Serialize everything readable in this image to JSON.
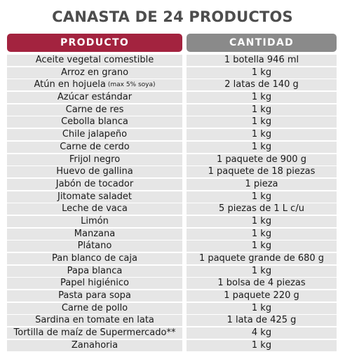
{
  "title": "CANASTA DE 24 PRODUCTOS",
  "colors": {
    "producto_header": "#a3233f",
    "cantidad_header": "#8a8a8a",
    "row_bg": "#e6e6e6",
    "title": "#4d4d4d"
  },
  "headers": {
    "producto": "PRODUCTO",
    "cantidad": "CANTIDAD"
  },
  "rows": [
    {
      "producto": "Aceite vegetal comestible",
      "note": "",
      "cantidad": "1 botella 946 ml"
    },
    {
      "producto": "Arroz en grano",
      "note": "",
      "cantidad": "1 kg"
    },
    {
      "producto": "Atún en hojuela",
      "note": "(max 5% soya)",
      "cantidad": "2 latas de 140 g"
    },
    {
      "producto": "Azúcar estándar",
      "note": "",
      "cantidad": "1 kg"
    },
    {
      "producto": "Carne de res",
      "note": "",
      "cantidad": "1 kg"
    },
    {
      "producto": "Cebolla blanca",
      "note": "",
      "cantidad": "1 kg"
    },
    {
      "producto": "Chile jalapeño",
      "note": "",
      "cantidad": "1 kg"
    },
    {
      "producto": "Carne de cerdo",
      "note": "",
      "cantidad": "1 kg"
    },
    {
      "producto": "Frijol negro",
      "note": "",
      "cantidad": "1 paquete de 900 g"
    },
    {
      "producto": "Huevo de gallina",
      "note": "",
      "cantidad": "1 paquete de 18 piezas"
    },
    {
      "producto": "Jabón de tocador",
      "note": "",
      "cantidad": "1 pieza"
    },
    {
      "producto": "Jitomate saladet",
      "note": "",
      "cantidad": "1 kg"
    },
    {
      "producto": "Leche de vaca",
      "note": "",
      "cantidad": "5 piezas de 1 L c/u"
    },
    {
      "producto": "Limón",
      "note": "",
      "cantidad": "1 kg"
    },
    {
      "producto": "Manzana",
      "note": "",
      "cantidad": "1 kg"
    },
    {
      "producto": "Plátano",
      "note": "",
      "cantidad": "1 kg"
    },
    {
      "producto": "Pan blanco de caja",
      "note": "",
      "cantidad": "1 paquete grande de 680 g"
    },
    {
      "producto": "Papa blanca",
      "note": "",
      "cantidad": "1 kg"
    },
    {
      "producto": "Papel higiénico",
      "note": "",
      "cantidad": "1 bolsa de 4 piezas"
    },
    {
      "producto": "Pasta para sopa",
      "note": "",
      "cantidad": "1 paquete 220 g"
    },
    {
      "producto": "Carne de pollo",
      "note": "",
      "cantidad": "1 kg"
    },
    {
      "producto": "Sardina en tomate en lata",
      "note": "",
      "cantidad": "1 lata de 425 g"
    },
    {
      "producto": "Tortilla de maíz de Supermercado**",
      "note": "",
      "cantidad": "4 kg"
    },
    {
      "producto": "Zanahoria",
      "note": "",
      "cantidad": "1 kg"
    }
  ]
}
